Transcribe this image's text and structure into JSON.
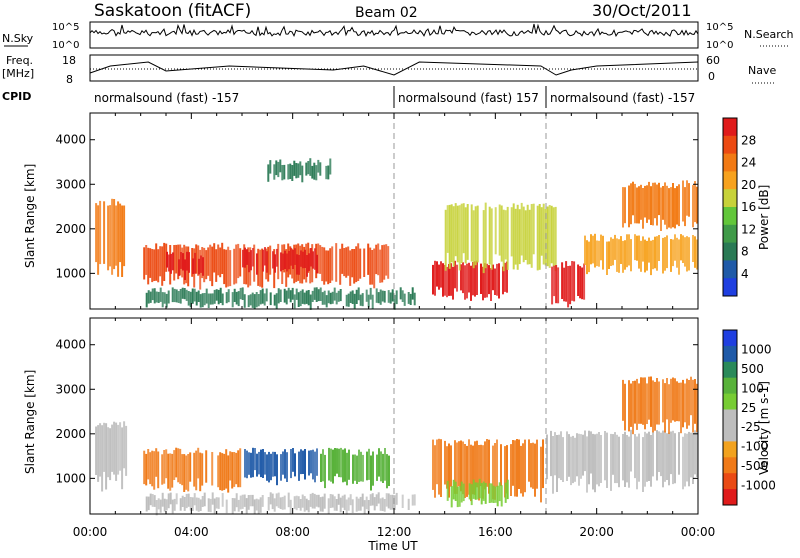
{
  "header": {
    "station": "Saskatoon (fitACF)",
    "beam": "Beam 02",
    "date": "30/Oct/2011"
  },
  "strip_labels": {
    "nsky": "N.Sky",
    "nsky_top": "10^5",
    "nsky_bottom": "10^0",
    "freq": "Freq.",
    "freq_unit": "[MHz]",
    "freq_top": "18",
    "freq_bottom": "8",
    "nsearch": "N.Search",
    "nsearch_top": "10^5",
    "nsearch_bottom": "10^0",
    "nave": "Nave",
    "nave_top": "60",
    "nave_bottom": "0",
    "cpid": "CPID"
  },
  "cpid_segments": [
    {
      "label": "normalsound (fast) -157",
      "start_hour": 0
    },
    {
      "label": "normalsound (fast) 157",
      "start_hour": 12
    },
    {
      "label": "normalsound (fast) -157",
      "start_hour": 18
    }
  ],
  "colors": {
    "power_scale": [
      "#1f3fe0",
      "#1f5aa8",
      "#2a7a55",
      "#3f9a48",
      "#62c63a",
      "#c7d23a",
      "#f7a21e",
      "#f27a14",
      "#ec4a12",
      "#e01b1b"
    ],
    "velocity_scale": [
      "#1f3fe0",
      "#1f5aa8",
      "#2a8a5a",
      "#58b23a",
      "#77cc33",
      "#bdbdbd",
      "#bdbdbd",
      "#f2a21e",
      "#f07a18",
      "#ea4a14",
      "#e01b1b"
    ],
    "ground_scatter": "#bdbdbd"
  },
  "chart_data": [
    {
      "type": "heatmap",
      "name": "power",
      "ylabel": "Slant Range [km]",
      "yticks": [
        1000,
        2000,
        3000,
        4000
      ],
      "ylim": [
        200,
        4600
      ],
      "xlim_hours": [
        0,
        24
      ],
      "colorbar_label": "Power [dB]",
      "colorbar_ticks": [
        "28",
        "24",
        "20",
        "16",
        "12",
        "8",
        "4"
      ],
      "bands": [
        {
          "t0": 0.2,
          "t1": 1.4,
          "r0": 800,
          "r1": 2600,
          "level": 7
        },
        {
          "t0": 2.1,
          "t1": 11.8,
          "r0": 700,
          "r1": 1600,
          "level": 8
        },
        {
          "t0": 3.0,
          "t1": 4.5,
          "r0": 900,
          "r1": 1400,
          "level": 9
        },
        {
          "t0": 6.0,
          "t1": 9.0,
          "r0": 1000,
          "r1": 1500,
          "level": 9
        },
        {
          "t0": 2.2,
          "t1": 12.8,
          "r0": 250,
          "r1": 600,
          "level": 2
        },
        {
          "t0": 7.0,
          "t1": 9.5,
          "r0": 3100,
          "r1": 3500,
          "level": 2
        },
        {
          "t0": 13.5,
          "t1": 16.5,
          "r0": 400,
          "r1": 1200,
          "level": 9
        },
        {
          "t0": 14.0,
          "t1": 18.5,
          "r0": 1000,
          "r1": 2500,
          "level": 5
        },
        {
          "t0": 18.2,
          "t1": 19.5,
          "r0": 250,
          "r1": 1200,
          "level": 9
        },
        {
          "t0": 19.5,
          "t1": 24.0,
          "r0": 1000,
          "r1": 1800,
          "level": 6
        },
        {
          "t0": 21.0,
          "t1": 24.0,
          "r0": 2000,
          "r1": 3000,
          "level": 7
        }
      ]
    },
    {
      "type": "heatmap",
      "name": "velocity",
      "ylabel": "Slant Range [km]",
      "yticks": [
        1000,
        2000,
        3000,
        4000
      ],
      "ylim": [
        200,
        4600
      ],
      "xlim_hours": [
        0,
        24
      ],
      "xlabel": "Time UT",
      "xticks": [
        "00:00",
        "04:00",
        "08:00",
        "12:00",
        "16:00",
        "20:00",
        "00:00"
      ],
      "colorbar_label": "Velocity [m s-1]",
      "colorbar_ticks": [
        "1000",
        "500",
        "100",
        "25",
        "-25",
        "-100",
        "-500",
        "-1000"
      ],
      "bands": [
        {
          "t0": 0.2,
          "t1": 1.4,
          "r0": 700,
          "r1": 2200,
          "level": 5
        },
        {
          "t0": 2.1,
          "t1": 6.0,
          "r0": 700,
          "r1": 1600,
          "level": 8
        },
        {
          "t0": 6.0,
          "t1": 9.0,
          "r0": 900,
          "r1": 1600,
          "level": 1
        },
        {
          "t0": 9.0,
          "t1": 11.8,
          "r0": 800,
          "r1": 1600,
          "level": 3
        },
        {
          "t0": 2.2,
          "t1": 12.8,
          "r0": 250,
          "r1": 600,
          "level": 5
        },
        {
          "t0": 13.5,
          "t1": 18.0,
          "r0": 500,
          "r1": 1800,
          "level": 8
        },
        {
          "t0": 14.0,
          "t1": 16.5,
          "r0": 400,
          "r1": 900,
          "level": 4
        },
        {
          "t0": 18.0,
          "t1": 24.0,
          "r0": 700,
          "r1": 2000,
          "level": 5
        },
        {
          "t0": 21.0,
          "t1": 24.0,
          "r0": 2000,
          "r1": 3200,
          "level": 8
        }
      ]
    }
  ]
}
